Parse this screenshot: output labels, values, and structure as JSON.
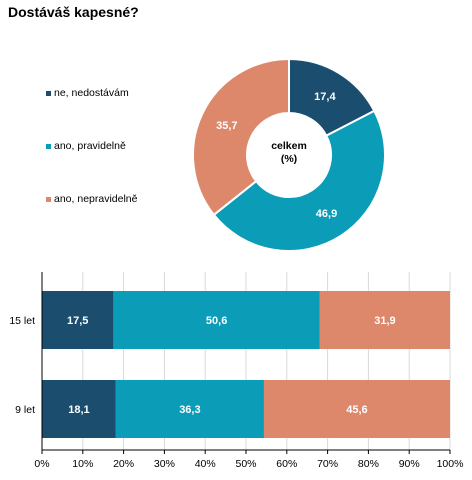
{
  "title": "Dostáváš kapesné?",
  "chart_data": [
    {
      "type": "pie",
      "center_label": [
        "celkem",
        "(%)"
      ],
      "categories": [
        "ne, nedostávám",
        "ano, pravidelně",
        "ano, nepravidelně"
      ],
      "values": [
        17.4,
        46.9,
        35.7
      ],
      "labels": [
        "17,4",
        "46,9",
        "35,7"
      ],
      "colors": [
        "#1a4d6e",
        "#0b9cb8",
        "#dd876b"
      ],
      "legend_placement": "left"
    },
    {
      "type": "bar",
      "orientation": "horizontal",
      "stacked": true,
      "categories": [
        "15 let",
        "9 let"
      ],
      "series": [
        {
          "name": "ne, nedostávám",
          "values": [
            17.5,
            18.1
          ],
          "labels": [
            "17,5",
            "18,1"
          ],
          "color": "#1a4d6e"
        },
        {
          "name": "ano, pravidelně",
          "values": [
            50.6,
            36.3
          ],
          "labels": [
            "50,6",
            "36,3"
          ],
          "color": "#0b9cb8"
        },
        {
          "name": "ano, nepravidelně",
          "values": [
            31.9,
            45.6
          ],
          "labels": [
            "31,9",
            "45,6"
          ],
          "color": "#dd876b"
        }
      ],
      "xlim": [
        0,
        100
      ],
      "xticks": [
        "0%",
        "10%",
        "20%",
        "30%",
        "40%",
        "50%",
        "60%",
        "70%",
        "80%",
        "90%",
        "100%"
      ]
    }
  ]
}
